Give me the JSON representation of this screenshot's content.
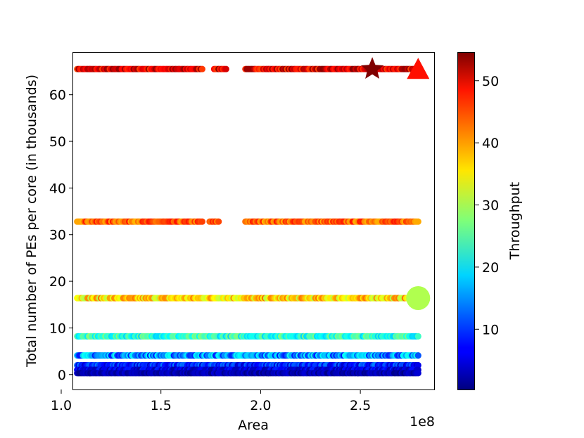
{
  "chart_data": {
    "type": "scatter",
    "title": "",
    "xlabel": "Area",
    "ylabel": "Total number of PEs per core (in thousands)",
    "x_offset_label": "1e8",
    "xlim": [
      1.06,
      2.87
    ],
    "ylim": [
      -3.2,
      69
    ],
    "xticks": [
      1.0,
      1.5,
      2.0,
      2.5
    ],
    "xtick_labels": [
      "1.0",
      "1.5",
      "2.0",
      "2.5"
    ],
    "yticks": [
      0,
      10,
      20,
      30,
      40,
      50,
      60
    ],
    "ytick_labels": [
      "0",
      "10",
      "20",
      "30",
      "40",
      "50",
      "60"
    ],
    "colorbar": {
      "label": "Throughput",
      "colormap": "jet",
      "min": 0.3,
      "max": 54.5,
      "ticks": [
        10,
        20,
        30,
        40,
        50
      ],
      "tick_labels": [
        "10",
        "20",
        "30",
        "40",
        "50"
      ]
    },
    "grid": false,
    "bands": [
      {
        "y": 65.5,
        "x_start": 1.08,
        "x_end": 2.79,
        "throughput_range": [
          44,
          54
        ],
        "gaps": [
          [
            1.71,
            1.76
          ],
          [
            1.83,
            1.92
          ]
        ]
      },
      {
        "y": 32.8,
        "x_start": 1.08,
        "x_end": 2.79,
        "throughput_range": [
          38,
          47
        ],
        "gaps": [
          [
            1.71,
            1.74
          ],
          [
            1.79,
            1.92
          ]
        ]
      },
      {
        "y": 16.4,
        "x_start": 1.08,
        "x_end": 2.79,
        "throughput_range": [
          30,
          42
        ],
        "gaps": []
      },
      {
        "y": 8.2,
        "x_start": 1.08,
        "x_end": 2.79,
        "throughput_range": [
          18,
          28
        ],
        "gaps": []
      },
      {
        "y": 4.1,
        "x_start": 1.08,
        "x_end": 2.79,
        "throughput_range": [
          8,
          22
        ],
        "gaps": []
      },
      {
        "y": 2.0,
        "x_start": 1.08,
        "x_end": 2.79,
        "throughput_range": [
          4,
          14
        ],
        "gaps": []
      },
      {
        "y": 1.0,
        "x_start": 1.08,
        "x_end": 2.79,
        "throughput_range": [
          2,
          9
        ],
        "gaps": []
      },
      {
        "y": 0.3,
        "x_start": 1.08,
        "x_end": 2.79,
        "throughput_range": [
          0.5,
          5
        ],
        "gaps": []
      }
    ],
    "highlights": [
      {
        "marker": "star",
        "x": 2.56,
        "y": 65.5,
        "throughput": 54.5
      },
      {
        "marker": "triangle",
        "x": 2.79,
        "y": 65.5,
        "throughput": 47
      },
      {
        "marker": "circle",
        "x": 2.79,
        "y": 16.4,
        "throughput": 30
      }
    ]
  }
}
